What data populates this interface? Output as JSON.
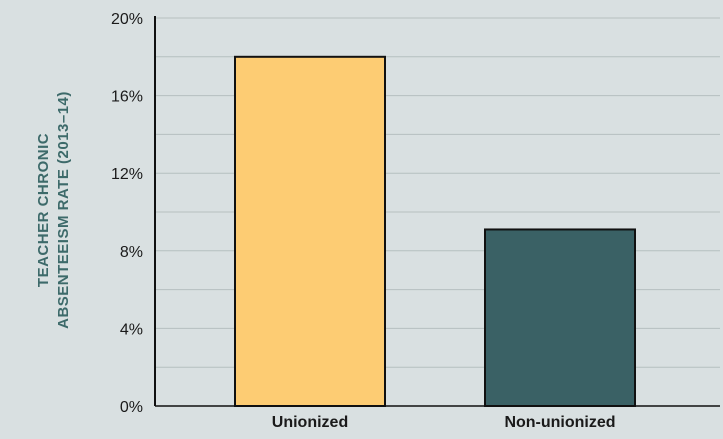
{
  "chart_data": {
    "type": "bar",
    "title": "",
    "xlabel": "",
    "ylabel": [
      "TEACHER CHRONIC",
      "ABSENTEEISM RATE (2013–14)"
    ],
    "categories": [
      "Unionized",
      "Non-unionized"
    ],
    "values": [
      18,
      9.1
    ],
    "ylim": [
      0,
      20
    ],
    "yticks": [
      "0%",
      "4%",
      "8%",
      "12%",
      "16%",
      "20%"
    ],
    "ytick_values": [
      0,
      4,
      8,
      12,
      16,
      20
    ],
    "minor_grid_step": 2,
    "grid": true,
    "legend": "none",
    "colors": {
      "background": "#d9e0e1",
      "bars": [
        "#fdcc73",
        "#3a6165"
      ],
      "bar_outline": "#111111",
      "grid": "#b6bfc0",
      "axis": "#111111",
      "ylabel": "#3d6a6a"
    }
  }
}
